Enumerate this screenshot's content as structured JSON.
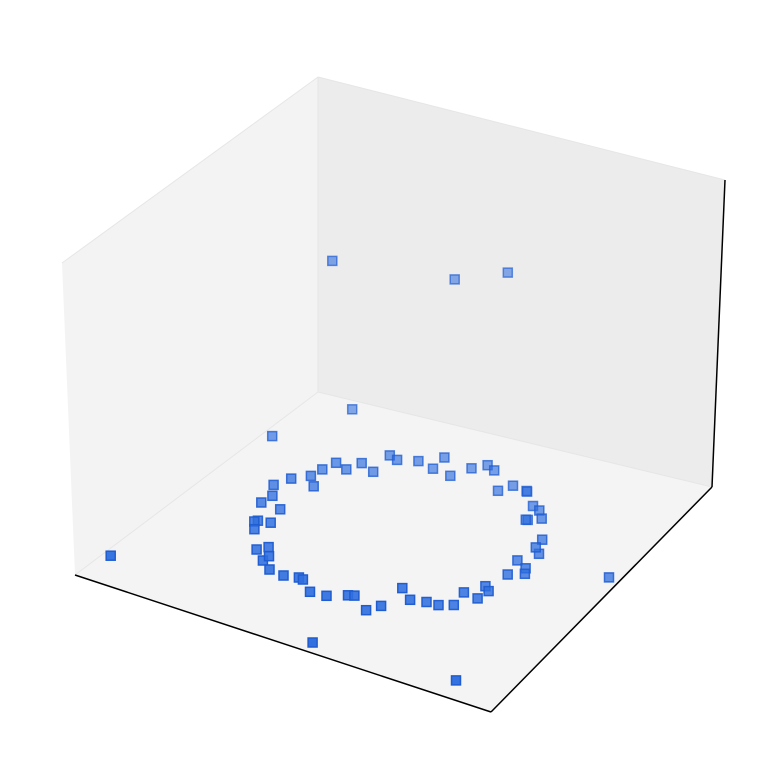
{
  "chart_data": {
    "type": "scatter",
    "projection": "3d",
    "title": "",
    "xlabel": "",
    "ylabel": "",
    "zlabel": "",
    "ticks": "hidden",
    "grid": false,
    "legend": "none",
    "xlim": [
      -1.6,
      1.6
    ],
    "ylim": [
      -1.6,
      1.6
    ],
    "zlim": [
      0,
      1
    ],
    "marker": "square",
    "colors": {
      "marker_fill": "#2f6fdf",
      "marker_edge": "#1f5cd0",
      "pane_left": "#f3f3f3",
      "pane_back": "#ececec",
      "pane_floor": "#f4f4f4",
      "axis_line": "#000000",
      "pane_edge": "#e6e6e6",
      "stray_marker": "#d8d0c8"
    },
    "series": [
      {
        "points": [
          [
            1.0,
            0.0,
            0.03
          ],
          [
            0.92,
            0.38,
            0.03
          ],
          [
            0.71,
            0.71,
            0.03
          ],
          [
            0.38,
            0.92,
            0.03
          ],
          [
            0.0,
            1.0,
            0.03
          ],
          [
            -0.38,
            0.92,
            0.03
          ],
          [
            -0.71,
            0.71,
            0.03
          ],
          [
            -0.92,
            0.38,
            0.03
          ],
          [
            -1.0,
            0.0,
            0.03
          ],
          [
            -0.92,
            -0.38,
            0.03
          ],
          [
            -0.71,
            -0.71,
            0.03
          ],
          [
            -0.38,
            -0.92,
            0.03
          ],
          [
            0.0,
            -1.0,
            0.03
          ],
          [
            0.38,
            -0.92,
            0.03
          ],
          [
            0.71,
            -0.71,
            0.03
          ],
          [
            0.92,
            -0.38,
            0.03
          ],
          [
            0.97,
            0.2,
            0.05
          ],
          [
            0.82,
            0.55,
            0.05
          ],
          [
            0.55,
            0.82,
            0.05
          ],
          [
            0.2,
            0.97,
            0.05
          ],
          [
            -0.2,
            0.97,
            0.05
          ],
          [
            -0.55,
            0.82,
            0.05
          ],
          [
            -0.82,
            0.55,
            0.05
          ],
          [
            -0.97,
            0.2,
            0.05
          ],
          [
            -0.97,
            -0.2,
            0.05
          ],
          [
            -0.82,
            -0.55,
            0.05
          ],
          [
            -0.55,
            -0.82,
            0.05
          ],
          [
            -0.2,
            -0.97,
            0.05
          ],
          [
            0.2,
            -0.97,
            0.05
          ],
          [
            0.55,
            -0.82,
            0.05
          ],
          [
            0.82,
            -0.55,
            0.05
          ],
          [
            0.97,
            -0.2,
            0.05
          ],
          [
            0.88,
            0.1,
            0.02
          ],
          [
            0.68,
            0.6,
            0.02
          ],
          [
            0.3,
            0.85,
            0.02
          ],
          [
            -0.1,
            0.88,
            0.02
          ],
          [
            -0.6,
            0.68,
            0.02
          ],
          [
            -0.85,
            0.3,
            0.02
          ],
          [
            -0.88,
            -0.1,
            0.02
          ],
          [
            -0.68,
            -0.6,
            0.02
          ],
          [
            -0.3,
            -0.85,
            0.02
          ],
          [
            0.1,
            -0.88,
            0.02
          ],
          [
            0.6,
            -0.68,
            0.02
          ],
          [
            0.85,
            -0.3,
            0.02
          ],
          [
            1.05,
            -0.1,
            0.04
          ],
          [
            -1.05,
            0.1,
            0.04
          ],
          [
            0.1,
            1.05,
            0.04
          ],
          [
            -0.1,
            -1.05,
            0.04
          ],
          [
            0.75,
            0.45,
            0.06
          ],
          [
            -0.45,
            0.75,
            0.06
          ],
          [
            -0.75,
            -0.45,
            0.06
          ],
          [
            0.45,
            -0.75,
            0.06
          ],
          [
            0.62,
            0.78,
            0.02
          ],
          [
            -0.78,
            0.62,
            0.02
          ],
          [
            -0.62,
            -0.78,
            0.02
          ],
          [
            0.78,
            -0.62,
            0.02
          ],
          [
            0.95,
            0.28,
            0.01
          ],
          [
            -0.28,
            0.95,
            0.01
          ],
          [
            -0.95,
            -0.28,
            0.01
          ],
          [
            0.28,
            -0.95,
            0.01
          ],
          [
            0.5,
            0.9,
            0.03
          ],
          [
            -0.9,
            0.5,
            0.03
          ],
          [
            -0.5,
            -0.9,
            0.03
          ],
          [
            0.9,
            -0.5,
            0.03
          ],
          [
            1.25,
            -1.45,
            0.02
          ],
          [
            1.55,
            0.2,
            0.02
          ],
          [
            0.2,
            -1.55,
            0.02
          ],
          [
            -1.5,
            -1.3,
            0.02
          ],
          [
            -1.45,
            0.75,
            0.03
          ],
          [
            -1.2,
            1.4,
            0.02
          ],
          [
            -1.3,
            1.3,
            0.5
          ],
          [
            0.0,
            1.5,
            0.55
          ],
          [
            -0.4,
            1.45,
            0.5
          ]
        ]
      }
    ]
  }
}
